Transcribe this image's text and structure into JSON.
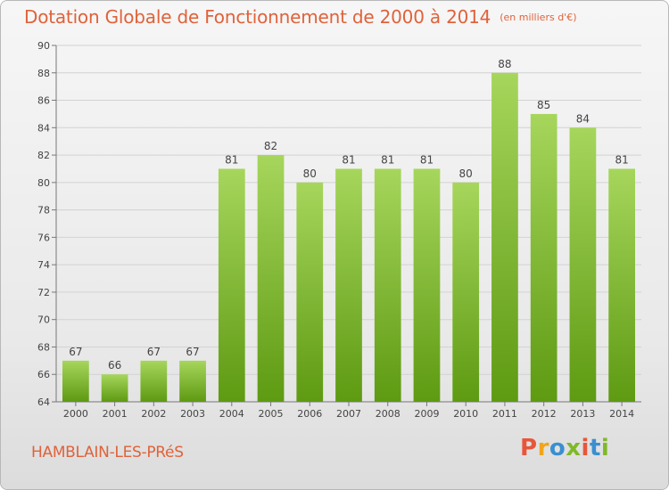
{
  "chart_data": {
    "type": "bar",
    "title": "Dotation Globale de Fonctionnement de 2000 à 2014",
    "subtitle": "(en milliers d'€)",
    "categories": [
      "2000",
      "2001",
      "2002",
      "2003",
      "2004",
      "2005",
      "2006",
      "2007",
      "2008",
      "2009",
      "2010",
      "2011",
      "2012",
      "2013",
      "2014"
    ],
    "values": [
      67,
      66,
      67,
      67,
      81,
      82,
      80,
      81,
      81,
      81,
      80,
      88,
      85,
      84,
      81
    ],
    "ylim": [
      64,
      90
    ],
    "yticks": [
      64,
      66,
      68,
      70,
      72,
      74,
      76,
      78,
      80,
      82,
      84,
      86,
      88,
      90
    ],
    "grid": true,
    "data_labels": true
  },
  "footer": {
    "commune": "HAMBLAIN-LES-PRéS",
    "logo_letters": [
      "P",
      "r",
      "o",
      "x",
      "i",
      "t",
      "i"
    ],
    "logo_colors": [
      "#e8563a",
      "#f0a51c",
      "#3a8fd0",
      "#7fb928",
      "#e8563a",
      "#3a8fd0",
      "#7fb928"
    ]
  },
  "colors": {
    "bar_light": "#a6d65c",
    "bar_dark": "#5e9a12",
    "title": "#e0623a",
    "grid": "#d2d2d2",
    "axis": "#777777"
  }
}
